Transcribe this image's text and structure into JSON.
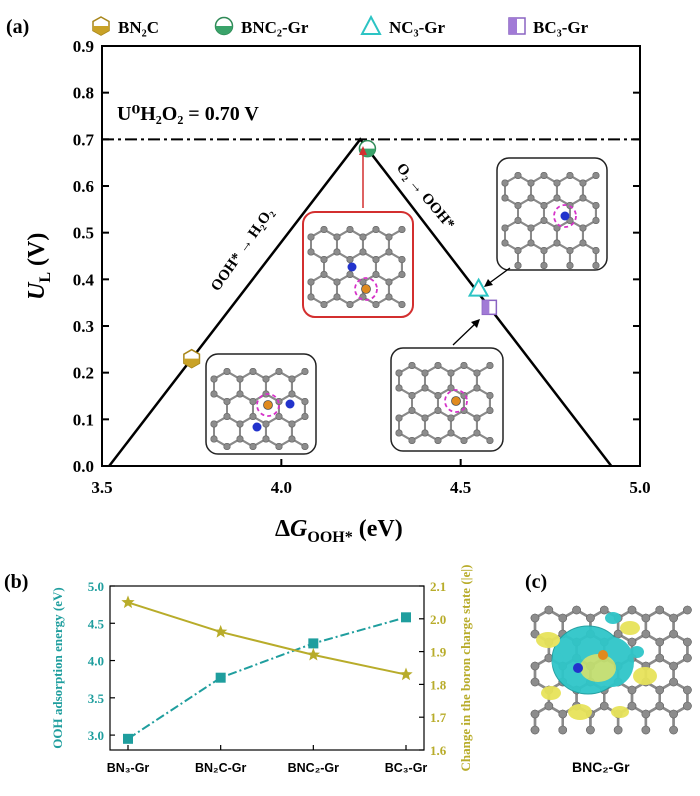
{
  "panels": {
    "a": "(a)",
    "b": "(b)",
    "c": "(c)"
  },
  "legend_a": [
    {
      "label": "BN₂C",
      "marker": "hexagon-half",
      "color": "#c9a227"
    },
    {
      "label": "BNC₂-Gr",
      "marker": "circle-half",
      "color": "#3aa36a"
    },
    {
      "label": "NC₃-Gr",
      "marker": "triangle-open",
      "color": "#2cc4c4"
    },
    {
      "label": "BC₃-Gr",
      "marker": "square-half",
      "color": "#a17ad6"
    }
  ],
  "annotations": {
    "equilibrium": "U⁰H₂O₂ = 0.70 V",
    "left_branch": "OOH* → H₂O₂",
    "right_branch": "O₂ → OOH*",
    "panel_c_label": "BNC₂-Gr"
  },
  "chart_data": [
    {
      "type": "scatter",
      "panel": "a",
      "xlabel": "ΔG OOH* (eV)",
      "ylabel": "U L (V)",
      "xlim": [
        3.5,
        5.0
      ],
      "ylim": [
        0.0,
        0.9
      ],
      "xticks": [
        3.5,
        4.0,
        4.5,
        5.0
      ],
      "yticks": [
        0.0,
        0.1,
        0.2,
        0.3,
        0.4,
        0.5,
        0.6,
        0.7,
        0.8,
        0.9
      ],
      "reference_line": {
        "y": 0.7,
        "style": "dash-dot"
      },
      "volcano": [
        [
          3.52,
          0.0
        ],
        [
          4.22,
          0.7
        ],
        [
          4.92,
          0.0
        ]
      ],
      "series": [
        {
          "name": "BN₂C",
          "x": [
            3.75
          ],
          "y": [
            0.23
          ]
        },
        {
          "name": "BNC₂-Gr",
          "x": [
            4.24
          ],
          "y": [
            0.68
          ]
        },
        {
          "name": "NC₃-Gr",
          "x": [
            4.55
          ],
          "y": [
            0.38
          ]
        },
        {
          "name": "BC₃-Gr",
          "x": [
            4.58
          ],
          "y": [
            0.34
          ]
        }
      ]
    },
    {
      "type": "line",
      "panel": "b",
      "categories": [
        "BN₃-Gr",
        "BN₂C-Gr",
        "BNC₂-Gr",
        "BC₃-Gr"
      ],
      "series": [
        {
          "name": "OOH adsorption energy (eV)",
          "axis": "left",
          "color": "#1f9e9e",
          "values": [
            2.95,
            3.77,
            4.23,
            4.58
          ]
        },
        {
          "name": "Change in the boron charge state (|e|)",
          "axis": "right",
          "color": "#b8ac2a",
          "values": [
            2.05,
            1.96,
            1.89,
            1.83
          ]
        }
      ],
      "ylabel_left": "OOH adsorption energy (eV)",
      "ylabel_right": "Change in the boron charge state (|e|)",
      "ylim_left": [
        2.8,
        5.0
      ],
      "yticks_left": [
        3.0,
        3.5,
        4.0,
        4.5,
        5.0
      ],
      "ylim_right": [
        1.6,
        2.1
      ],
      "yticks_right": [
        1.6,
        1.7,
        1.8,
        1.9,
        2.0,
        2.1
      ]
    }
  ]
}
